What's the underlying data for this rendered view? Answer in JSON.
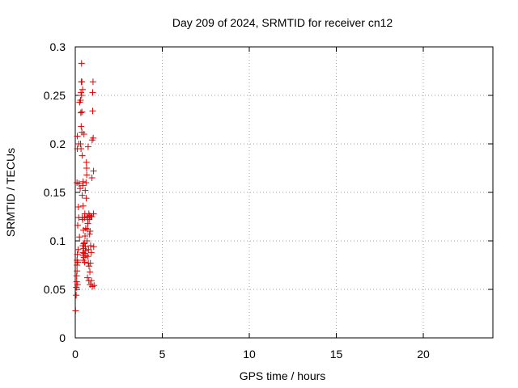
{
  "chart_data": {
    "type": "scatter",
    "title": "Day 209 of 2024, SRMTID for receiver cn12",
    "xlabel": "GPS time / hours",
    "ylabel": "SRMTID / TECUs",
    "xlim": [
      0,
      24
    ],
    "ylim": [
      0,
      0.3
    ],
    "x_ticks": [
      0,
      5,
      10,
      15,
      20
    ],
    "y_ticks": [
      0,
      0.05,
      0.1,
      0.15,
      0.2,
      0.25,
      0.3
    ],
    "x_tick_labels": [
      "0",
      "5",
      "10",
      "15",
      "20"
    ],
    "y_tick_labels": [
      "0",
      "0.05",
      "0.1",
      "0.15",
      "0.2",
      "0.25",
      "0.3"
    ],
    "grid": true,
    "marker": "plus",
    "series": [
      {
        "color": "#e00000",
        "points": [
          [
            0.02,
            0.028
          ],
          [
            0.05,
            0.044
          ],
          [
            0.06,
            0.052
          ],
          [
            0.08,
            0.058
          ],
          [
            0.08,
            0.064
          ],
          [
            0.1,
            0.069
          ],
          [
            0.1,
            0.075
          ],
          [
            0.1,
            0.08
          ],
          [
            0.12,
            0.086
          ],
          [
            0.13,
            0.055
          ],
          [
            0.14,
            0.078
          ],
          [
            0.1,
            0.16
          ],
          [
            0.12,
            0.195
          ],
          [
            0.12,
            0.208
          ],
          [
            0.14,
            0.116
          ],
          [
            0.16,
            0.091
          ],
          [
            0.18,
            0.135
          ],
          [
            0.2,
            0.124
          ],
          [
            0.2,
            0.2
          ],
          [
            0.22,
            0.159
          ],
          [
            0.24,
            0.104
          ],
          [
            0.25,
            0.243
          ],
          [
            0.28,
            0.154
          ],
          [
            0.3,
            0.2
          ],
          [
            0.3,
            0.245
          ],
          [
            0.32,
            0.232
          ],
          [
            0.33,
            0.195
          ],
          [
            0.33,
            0.253
          ],
          [
            0.34,
            0.218
          ],
          [
            0.35,
            0.264
          ],
          [
            0.36,
            0.283
          ],
          [
            0.36,
            0.25
          ],
          [
            0.38,
            0.264
          ],
          [
            0.38,
            0.212
          ],
          [
            0.38,
            0.233
          ],
          [
            0.4,
            0.188
          ],
          [
            0.4,
            0.147
          ],
          [
            0.4,
            0.124
          ],
          [
            0.42,
            0.256
          ],
          [
            0.42,
            0.122
          ],
          [
            0.43,
            0.157
          ],
          [
            0.44,
            0.095
          ],
          [
            0.44,
            0.088
          ],
          [
            0.45,
            0.161
          ],
          [
            0.45,
            0.136
          ],
          [
            0.46,
            0.085
          ],
          [
            0.46,
            0.08
          ],
          [
            0.47,
            0.111
          ],
          [
            0.48,
            0.097
          ],
          [
            0.48,
            0.092
          ],
          [
            0.5,
            0.083
          ],
          [
            0.5,
            0.21
          ],
          [
            0.52,
            0.087
          ],
          [
            0.52,
            0.098
          ],
          [
            0.53,
            0.124
          ],
          [
            0.54,
            0.078
          ],
          [
            0.55,
            0.128
          ],
          [
            0.56,
            0.105
          ],
          [
            0.57,
            0.152
          ],
          [
            0.58,
            0.094
          ],
          [
            0.59,
            0.09
          ],
          [
            0.6,
            0.085
          ],
          [
            0.6,
            0.113
          ],
          [
            0.62,
            0.16
          ],
          [
            0.63,
            0.144
          ],
          [
            0.64,
            0.181
          ],
          [
            0.65,
            0.175
          ],
          [
            0.66,
            0.168
          ],
          [
            0.67,
            0.125
          ],
          [
            0.68,
            0.1
          ],
          [
            0.7,
            0.112
          ],
          [
            0.7,
            0.124
          ],
          [
            0.7,
            0.062
          ],
          [
            0.72,
            0.118
          ],
          [
            0.73,
            0.084
          ],
          [
            0.74,
            0.197
          ],
          [
            0.75,
            0.077
          ],
          [
            0.76,
            0.091
          ],
          [
            0.78,
            0.128
          ],
          [
            0.78,
            0.059
          ],
          [
            0.79,
            0.074
          ],
          [
            0.8,
            0.122
          ],
          [
            0.82,
            0.107
          ],
          [
            0.83,
            0.126
          ],
          [
            0.84,
            0.068
          ],
          [
            0.85,
            0.11
          ],
          [
            0.85,
            0.055
          ],
          [
            0.87,
            0.077
          ],
          [
            0.88,
            0.095
          ],
          [
            0.9,
            0.125
          ],
          [
            0.92,
            0.088
          ],
          [
            0.93,
            0.059
          ],
          [
            0.95,
            0.125
          ],
          [
            0.96,
            0.165
          ],
          [
            0.97,
            0.204
          ],
          [
            0.98,
            0.053
          ],
          [
            1.0,
            0.234
          ],
          [
            1.0,
            0.253
          ],
          [
            1.02,
            0.264
          ],
          [
            1.03,
            0.206
          ],
          [
            1.05,
            0.172
          ],
          [
            1.05,
            0.128
          ],
          [
            1.06,
            0.094
          ],
          [
            1.08,
            0.054
          ]
        ]
      }
    ]
  }
}
